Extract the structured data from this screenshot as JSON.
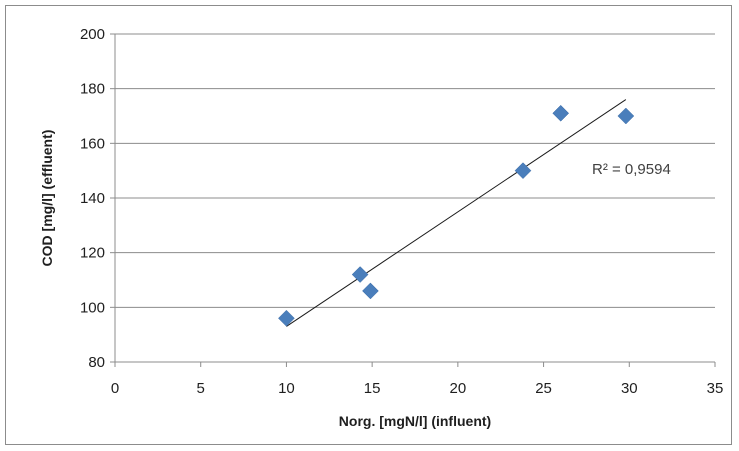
{
  "chart_data": {
    "type": "scatter",
    "title": "",
    "xlabel": "Norg. [mgN/l] (influent)",
    "ylabel": "COD [mg/l] (effluent)",
    "xlim": [
      0,
      35
    ],
    "ylim": [
      80,
      200
    ],
    "x_ticks": [
      0,
      5,
      10,
      15,
      20,
      25,
      30,
      35
    ],
    "y_ticks": [
      80,
      100,
      120,
      140,
      160,
      180,
      200
    ],
    "grid": "horizontal",
    "legend": "none",
    "series": [
      {
        "marker": "diamond",
        "color": "#4a7ebb",
        "points": [
          {
            "x": 10.0,
            "y": 96
          },
          {
            "x": 14.3,
            "y": 112
          },
          {
            "x": 14.9,
            "y": 106
          },
          {
            "x": 23.8,
            "y": 150
          },
          {
            "x": 26.0,
            "y": 171
          },
          {
            "x": 29.8,
            "y": 170
          }
        ]
      }
    ],
    "trendline": {
      "type": "linear",
      "from": {
        "x": 10.0,
        "y": 93
      },
      "to": {
        "x": 29.8,
        "y": 176
      },
      "color": "#1a1a1a"
    },
    "annotations": [
      {
        "text": "R² = 0,9594"
      }
    ]
  }
}
